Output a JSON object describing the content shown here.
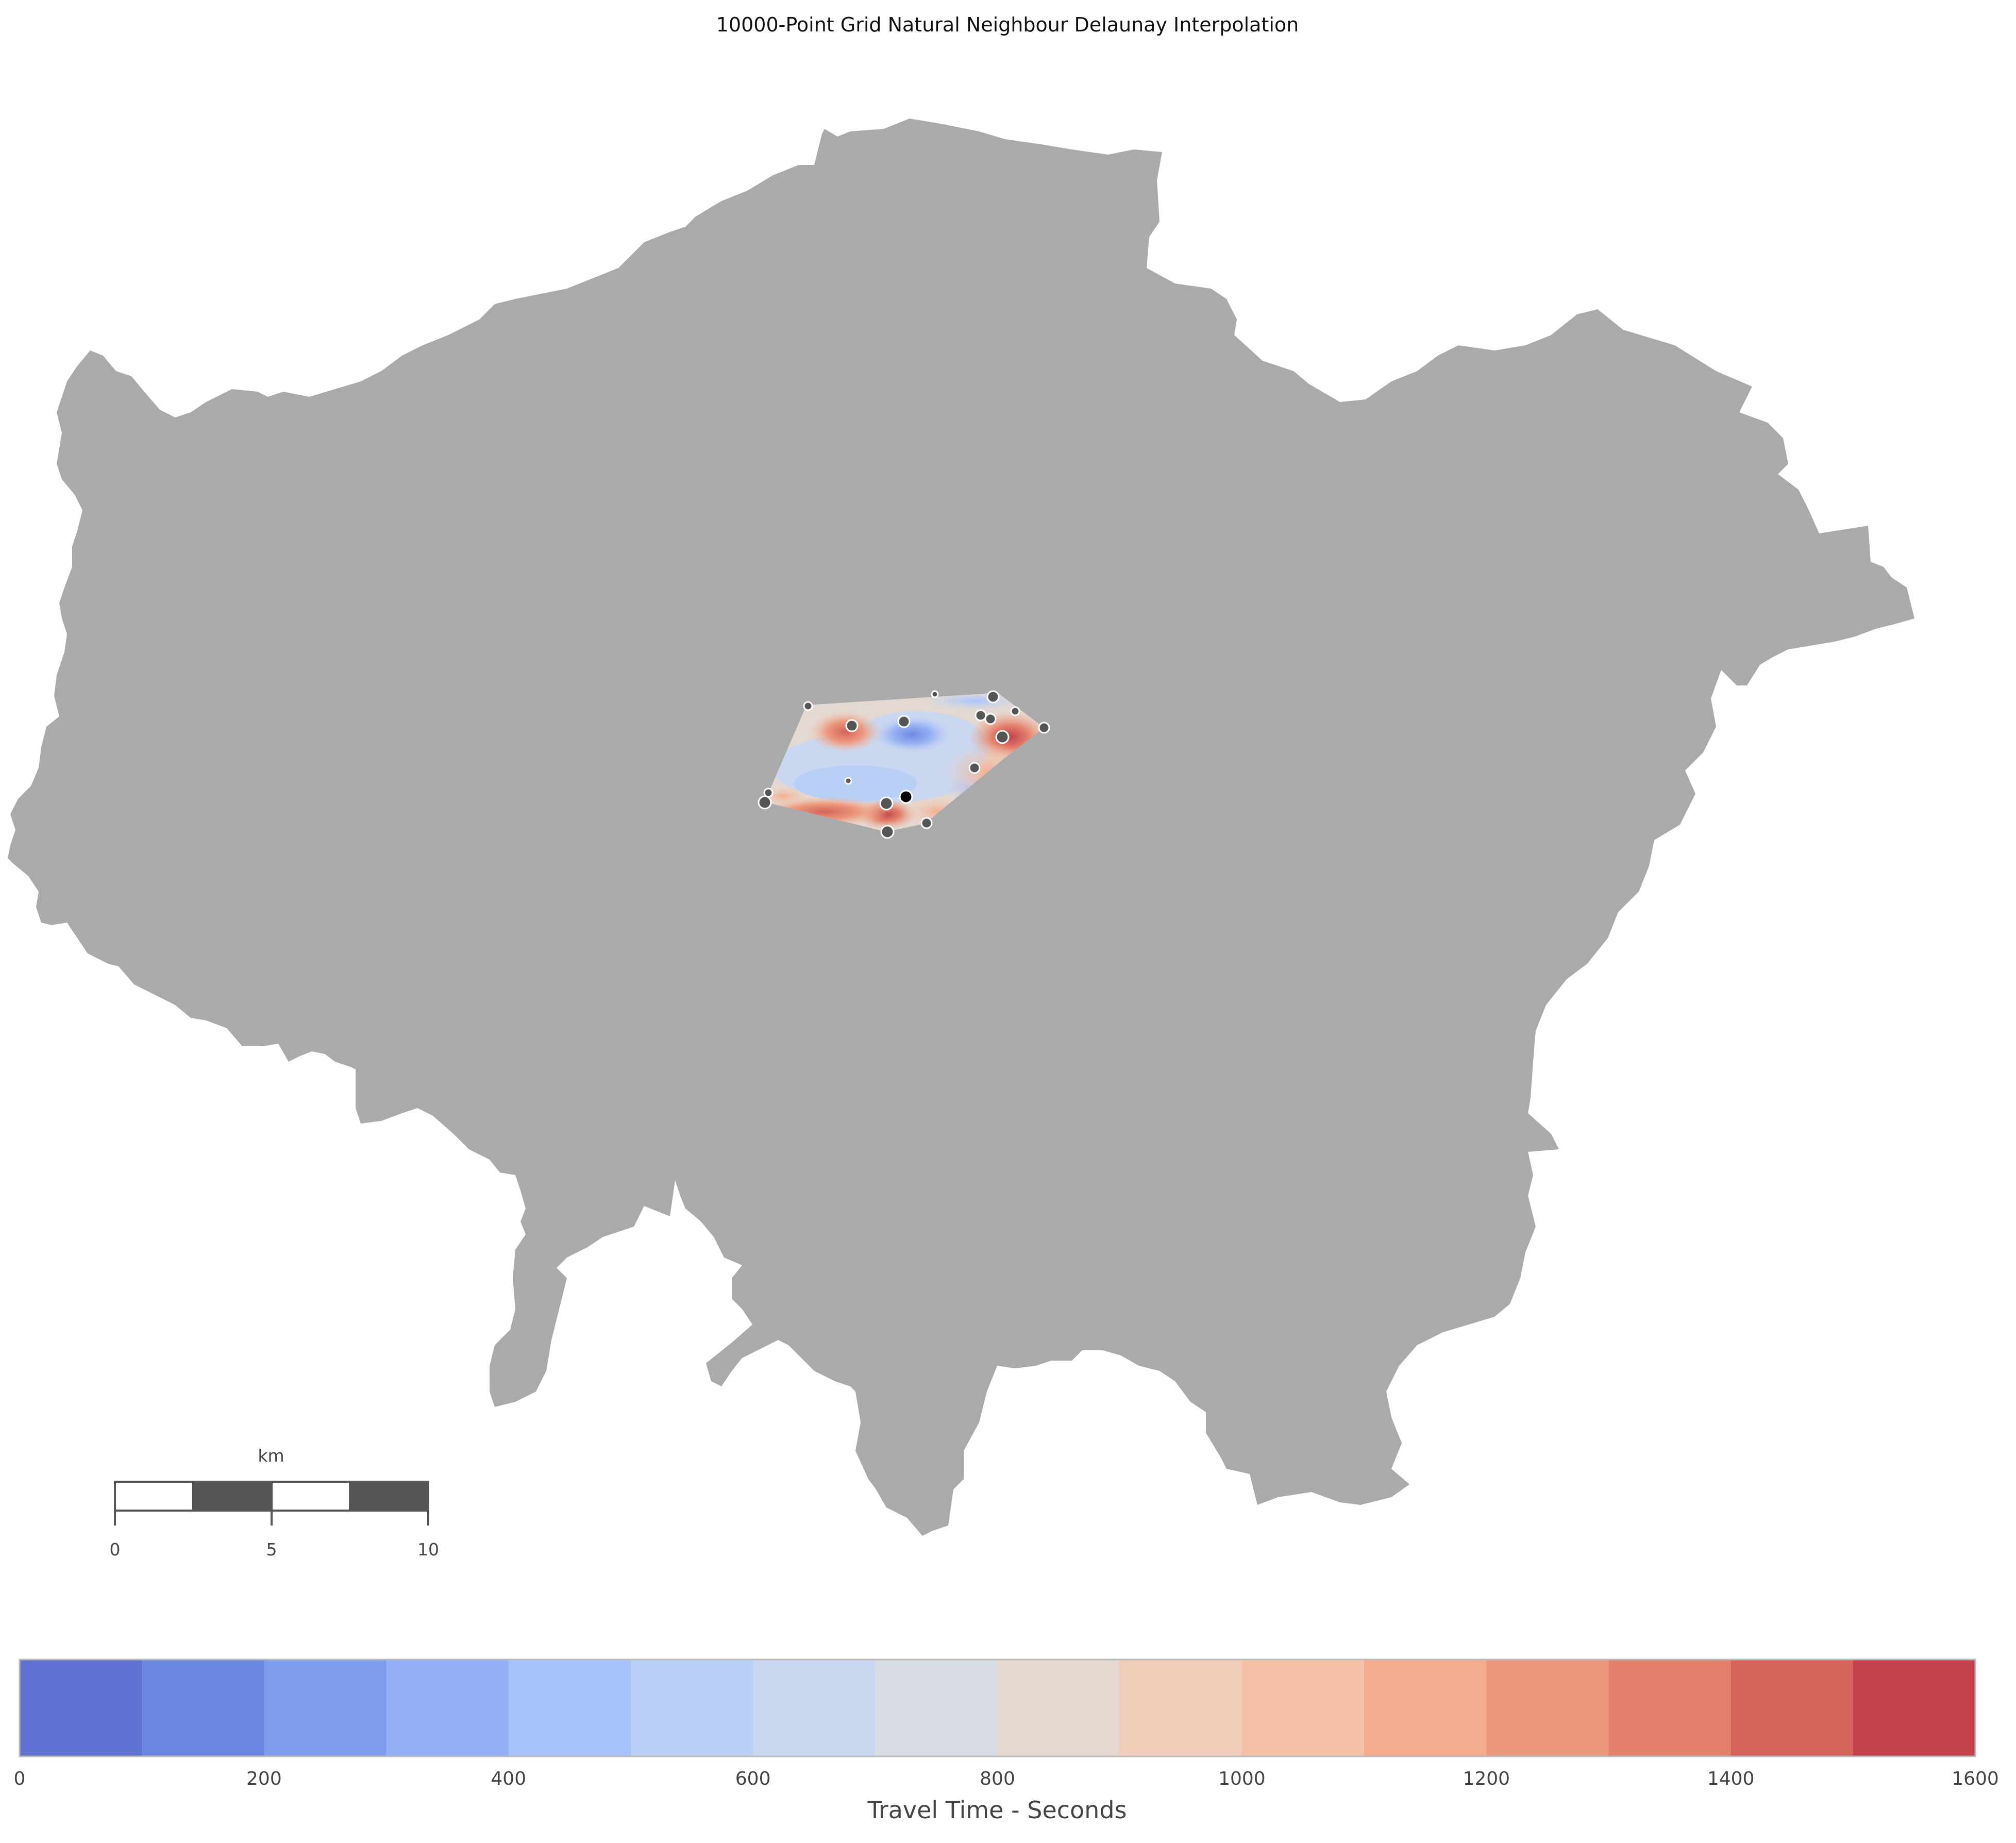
{
  "title": "10000-Point Grid Natural Neighbour Delaunay Interpolation",
  "map": {
    "land_color": "#aaaaaa",
    "interpolation_colormap": "coolwarm",
    "point_color": "#555555",
    "origin_point_color": "#000000"
  },
  "scale_bar": {
    "unit": "km",
    "labels": [
      "0",
      "5",
      "10"
    ],
    "segment_colors": [
      "#ffffff",
      "#555555",
      "#ffffff",
      "#555555"
    ]
  },
  "colorbar": {
    "label": "Travel Time - Seconds",
    "ticks": [
      "0",
      "200",
      "400",
      "600",
      "800",
      "1000",
      "1200",
      "1400",
      "1600"
    ],
    "bins": [
      {
        "min": 0,
        "max": 100,
        "color": "#5f72d2"
      },
      {
        "min": 100,
        "max": 200,
        "color": "#6c87e1"
      },
      {
        "min": 200,
        "max": 300,
        "color": "#809ced"
      },
      {
        "min": 300,
        "max": 400,
        "color": "#94b1f7"
      },
      {
        "min": 400,
        "max": 500,
        "color": "#a8c3fb"
      },
      {
        "min": 500,
        "max": 600,
        "color": "#b8cff6"
      },
      {
        "min": 600,
        "max": 700,
        "color": "#c9d7f0"
      },
      {
        "min": 700,
        "max": 800,
        "color": "#d8dce3"
      },
      {
        "min": 800,
        "max": 900,
        "color": "#e5d8d1"
      },
      {
        "min": 900,
        "max": 1000,
        "color": "#f0cdb9"
      },
      {
        "min": 1000,
        "max": 1100,
        "color": "#f4c0a6"
      },
      {
        "min": 1100,
        "max": 1200,
        "color": "#f2ad8e"
      },
      {
        "min": 1200,
        "max": 1300,
        "color": "#ec987c"
      },
      {
        "min": 1300,
        "max": 1400,
        "color": "#e3806b"
      },
      {
        "min": 1400,
        "max": 1500,
        "color": "#d4645b"
      },
      {
        "min": 1500,
        "max": 1600,
        "color": "#c3424c"
      }
    ]
  }
}
